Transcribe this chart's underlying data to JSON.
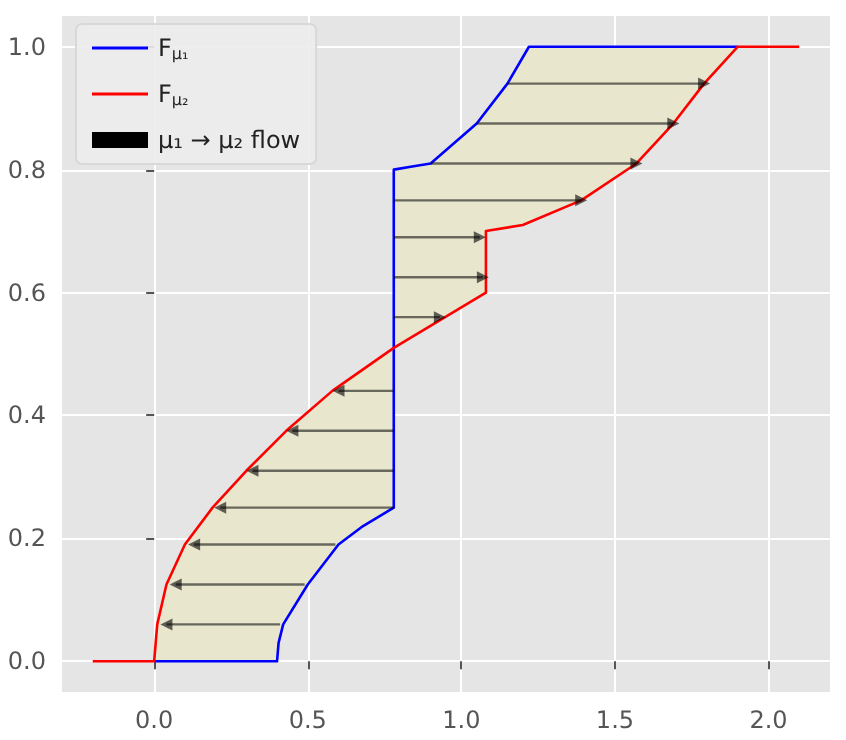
{
  "chart_data": {
    "type": "line",
    "legend": "top left",
    "grid": true,
    "xlim": [
      -0.3,
      2.2
    ],
    "ylim": [
      -0.05,
      1.05
    ],
    "xticks": [
      {
        "value": 0,
        "label": "0.0"
      },
      {
        "value": 0.5,
        "label": "0.5"
      },
      {
        "value": 1,
        "label": "1.0"
      },
      {
        "value": 1.5,
        "label": "1.5"
      },
      {
        "value": 2,
        "label": "2.0"
      }
    ],
    "yticks": [
      {
        "value": 0,
        "label": "0.0"
      },
      {
        "value": 0.2,
        "label": "0.2"
      },
      {
        "value": 0.4,
        "label": "0.4"
      },
      {
        "value": 0.6,
        "label": "0.6"
      },
      {
        "value": 0.8,
        "label": "0.8"
      },
      {
        "value": 1,
        "label": "1.0"
      }
    ],
    "series": [
      {
        "name": "F$_{μ₁}$",
        "color": "#0000ff",
        "x": [
          0,
          0.4,
          0.405,
          0.42,
          0.5,
          0.6,
          0.68,
          0.78,
          0.78,
          0.84,
          0.9,
          1.05,
          1.15,
          1.22,
          1.9
        ],
        "values": [
          0,
          0,
          0.03,
          0.06,
          0.125,
          0.19,
          0.22,
          0.25,
          0.8,
          0.805,
          0.81,
          0.875,
          0.94,
          1,
          1
        ]
      },
      {
        "name": "F$_{μ₂}$",
        "color": "#ff0000",
        "x": [
          -0.2,
          0,
          0.005,
          0.01,
          0.04,
          0.1,
          0.19,
          0.3,
          0.43,
          0.58,
          0.78,
          1.08,
          1.08,
          1.2,
          1.39,
          1.57,
          1.69,
          1.79,
          1.9,
          2.1
        ],
        "values": [
          0,
          0,
          0.03,
          0.06,
          0.125,
          0.19,
          0.25,
          0.31,
          0.375,
          0.44,
          0.51,
          0.6,
          0.7,
          0.71,
          0.75,
          0.81,
          0.875,
          0.94,
          1,
          1
        ]
      },
      {
        "name": "μ₁ → μ₂ flow",
        "marker": "triangle",
        "color": "#000000",
        "x": [
          0.41,
          0.04,
          null,
          0.49,
          0.07,
          null,
          0.59,
          0.13,
          null,
          0.78,
          0.215,
          null,
          0.78,
          0.32,
          null,
          0.78,
          0.45,
          null,
          0.78,
          0.6,
          null,
          0.78,
          0.93,
          null,
          0.78,
          1.07,
          null,
          0.78,
          1.06,
          null,
          0.78,
          1.39,
          null,
          0.9,
          1.57,
          null,
          1.05,
          1.69,
          null,
          1.15,
          1.79
        ],
        "values": [
          0.06,
          0.06,
          null,
          0.125,
          0.125,
          null,
          0.19,
          0.19,
          null,
          0.25,
          0.25,
          null,
          0.31,
          0.31,
          null,
          0.375,
          0.375,
          null,
          0.44,
          0.44,
          null,
          0.56,
          0.56,
          null,
          0.625,
          0.625,
          null,
          0.69,
          0.69,
          null,
          0.75,
          0.75,
          null,
          0.81,
          0.81,
          null,
          0.875,
          0.875,
          null,
          0.94,
          0.94
        ]
      }
    ]
  }
}
